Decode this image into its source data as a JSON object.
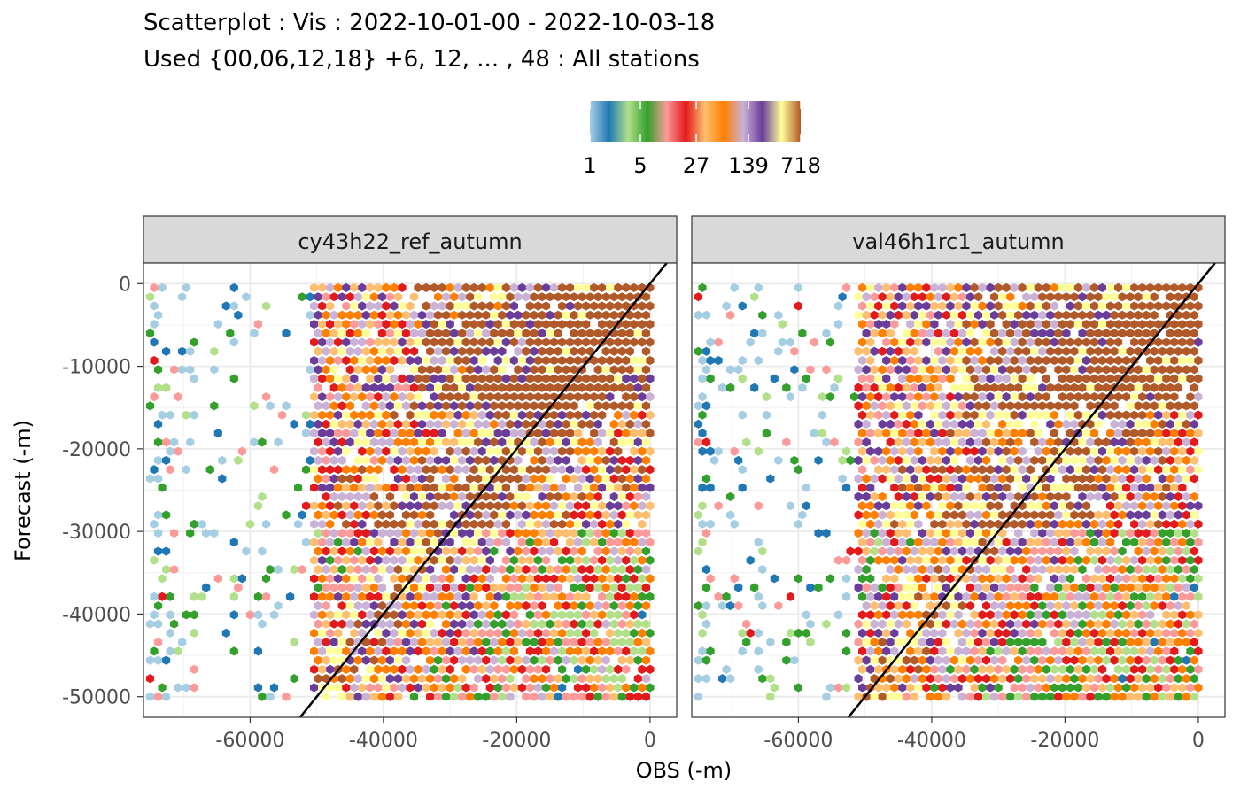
{
  "title": "Scatterplot : Vis : 2022-10-01-00 - 2022-10-03-18",
  "subtitle": "Used {00,06,12,18} +6, 12, ... , 48 : All stations",
  "xlabel": "OBS (-m)",
  "ylabel": "Forecast (-m)",
  "legend": {
    "labels": [
      "1",
      "5",
      "27",
      "139",
      "718"
    ],
    "palette": [
      "#a6cee3",
      "#1f78b4",
      "#b2df8a",
      "#33a02c",
      "#fb9a99",
      "#e31a1c",
      "#fdbf6f",
      "#ff7f00",
      "#cab2d6",
      "#6a3d9a",
      "#ffff99",
      "#b15928"
    ]
  },
  "chart_data": {
    "type": "hexbin",
    "xlim": [
      -76000,
      4000
    ],
    "ylim": [
      -52500,
      2500
    ],
    "x_ticks": [
      -60000,
      -40000,
      -20000,
      0
    ],
    "y_ticks": [
      0,
      -10000,
      -20000,
      -30000,
      -40000,
      -50000
    ],
    "x_tick_labels": [
      "-60000",
      "-40000",
      "-20000",
      "0"
    ],
    "y_tick_labels": [
      "0",
      "-10000",
      "-20000",
      "-30000",
      "-40000",
      "-50000"
    ],
    "count_scale": "log",
    "count_breaks": [
      1,
      5,
      27,
      139,
      718
    ],
    "reference_line": "y = x",
    "grid": true,
    "panels": [
      {
        "name": "cy43h22_ref_autumn",
        "obs_min": -75000,
        "obs_max": 0,
        "forecast_min": -50000,
        "forecast_max": 0
      },
      {
        "name": "val46h1rc1_autumn",
        "obs_min": -75000,
        "obs_max": 0,
        "forecast_min": -50000,
        "forecast_max": 0
      }
    ]
  }
}
